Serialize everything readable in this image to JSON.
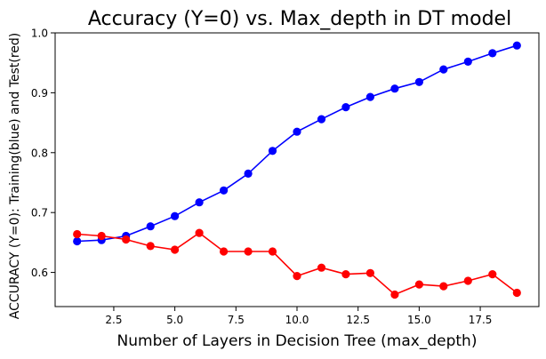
{
  "chart_data": {
    "type": "line",
    "title": "Accuracy (Y=0) vs. Max_depth in DT model",
    "xlabel": "Number of Layers in Decision Tree (max_depth)",
    "ylabel": "ACCURACY (Y=0): Training(blue) and Test(red)",
    "x": [
      1,
      2,
      3,
      4,
      5,
      6,
      7,
      8,
      9,
      10,
      11,
      12,
      13,
      14,
      15,
      16,
      17,
      18,
      19
    ],
    "xlim": [
      0.1,
      19.9
    ],
    "ylim": [
      0.543,
      1.0
    ],
    "xticks": [
      2.5,
      5.0,
      7.5,
      10.0,
      12.5,
      15.0,
      17.5
    ],
    "xtick_labels": [
      "2.5",
      "5.0",
      "7.5",
      "10.0",
      "12.5",
      "15.0",
      "17.5"
    ],
    "yticks": [
      0.6,
      0.7,
      0.8,
      0.9,
      1.0
    ],
    "ytick_labels": [
      "0.6",
      "0.7",
      "0.8",
      "0.9",
      "1.0"
    ],
    "grid": false,
    "series": [
      {
        "color": "#0000ff",
        "values": [
          0.652,
          0.654,
          0.661,
          0.677,
          0.694,
          0.717,
          0.737,
          0.765,
          0.803,
          0.835,
          0.856,
          0.876,
          0.893,
          0.907,
          0.918,
          0.939,
          0.952,
          0.966,
          0.979
        ]
      },
      {
        "color": "#ff0000",
        "values": [
          0.664,
          0.661,
          0.655,
          0.644,
          0.638,
          0.666,
          0.635,
          0.635,
          0.635,
          0.594,
          0.608,
          0.597,
          0.599,
          0.563,
          0.58,
          0.577,
          0.586,
          0.597,
          0.566
        ]
      }
    ]
  }
}
